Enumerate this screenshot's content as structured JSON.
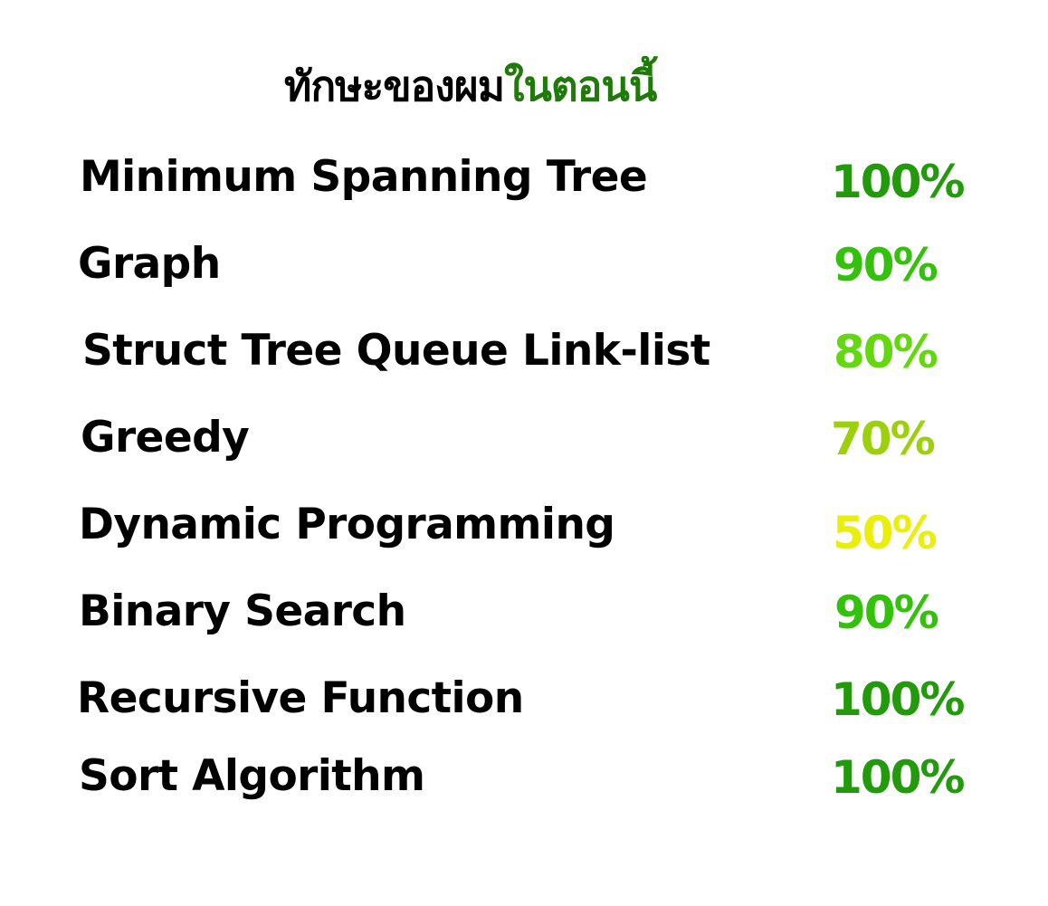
{
  "title": {
    "dark_part": "ทักษะของผม",
    "green_part": "ในตอนนี้",
    "dark_color": "#000000",
    "green_color": "#1f7a0a"
  },
  "skills": [
    {
      "label": "Minimum Spanning Tree",
      "value": "100%",
      "color": "#229a0c"
    },
    {
      "label": "Graph",
      "value": "90%",
      "color": "#33c10c"
    },
    {
      "label": "Struct Tree Queue Link-list",
      "value": "80%",
      "color": "#63d80f"
    },
    {
      "label": "Greedy",
      "value": "70%",
      "color": "#9cd00d"
    },
    {
      "label": "Dynamic Programming",
      "value": "50%",
      "color": "#e9ef0a"
    },
    {
      "label": "Binary Search",
      "value": "90%",
      "color": "#33c10c"
    },
    {
      "label": "Recursive Function",
      "value": "100%",
      "color": "#229a0c"
    },
    {
      "label": "Sort Algorithm",
      "value": "100%",
      "color": "#229a0c"
    }
  ]
}
